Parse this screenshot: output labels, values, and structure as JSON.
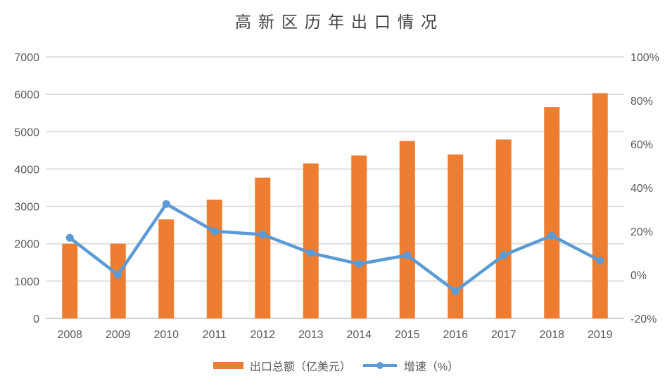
{
  "title": "高新区历年出口情况",
  "legend": [
    {
      "label": "出口总额（亿美元）",
      "series_type": "bar",
      "color": "#ED7D31"
    },
    {
      "label": "增速（%）",
      "series_type": "line",
      "color": "#5B9BD5"
    }
  ],
  "colors": {
    "bar": "#ED7D31",
    "line": "#5B9BD5",
    "grid": "#DBDBDB",
    "baseline": "#D2D2D2",
    "axis_text": "#595959",
    "title_text": "#404040"
  },
  "chart_data": {
    "type": "bar",
    "subtype": "combo-bar-line",
    "title": "高新区历年出口情况",
    "categories": [
      "2008",
      "2009",
      "2010",
      "2011",
      "2012",
      "2013",
      "2014",
      "2015",
      "2016",
      "2017",
      "2018",
      "2019"
    ],
    "series": [
      {
        "name": "出口总额（亿美元）",
        "type": "bar",
        "axis": "left",
        "color": "#ED7D31",
        "values": [
          2000,
          2000,
          2650,
          3180,
          3770,
          4150,
          4360,
          4750,
          4390,
          4790,
          5660,
          6030
        ]
      },
      {
        "name": "增速（%）",
        "type": "line",
        "axis": "right",
        "color": "#5B9BD5",
        "values": [
          17,
          0,
          32.5,
          20,
          18.5,
          10,
          5,
          9,
          -7.5,
          9,
          18,
          6.5
        ]
      }
    ],
    "left_axis": {
      "min": 0,
      "max": 7000,
      "step": 1000,
      "tick_labels": [
        "0",
        "1000",
        "2000",
        "3000",
        "4000",
        "5000",
        "6000",
        "7000"
      ]
    },
    "right_axis": {
      "min": -20,
      "max": 100,
      "step": 20,
      "tick_labels": [
        "-20%",
        "0%",
        "20%",
        "40%",
        "60%",
        "80%",
        "100%"
      ]
    },
    "xlabel": "",
    "ylabel": "",
    "grid": true,
    "legend_position": "bottom"
  }
}
